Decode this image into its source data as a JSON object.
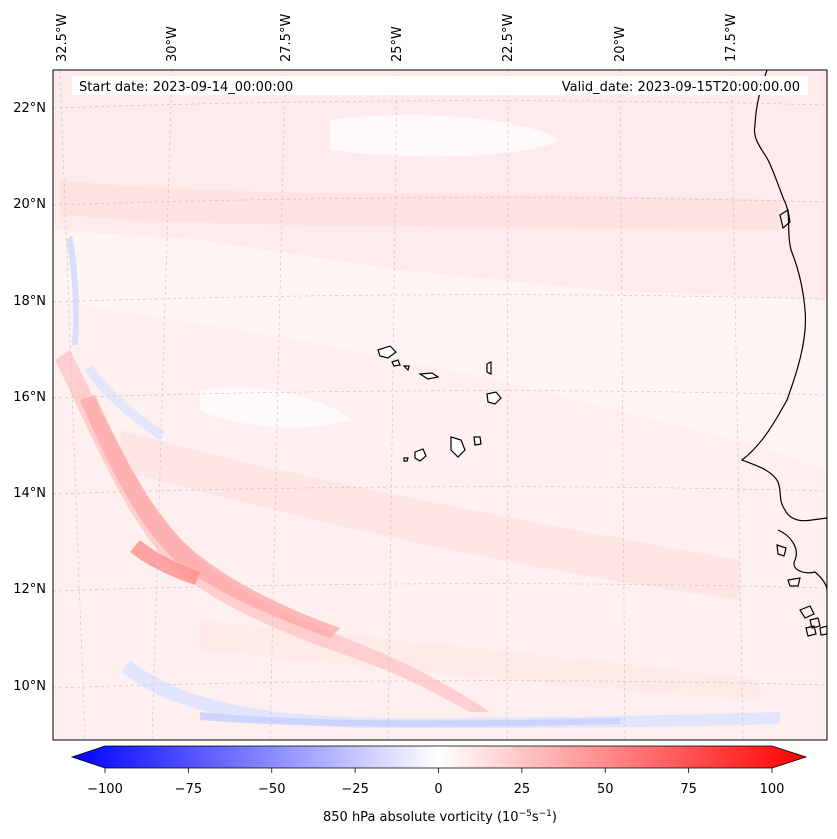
{
  "map": {
    "start_date": "Start date: 2023-09-14_00:00:00",
    "valid_date": "Valid_date: 2023-09-15T20:00:00.00",
    "lon_labels": [
      "32.5°W",
      "30°W",
      "27.5°W",
      "25°W",
      "22.5°W",
      "20°W",
      "17.5°W"
    ],
    "lat_labels": [
      "22°N",
      "20°N",
      "18°N",
      "16°N",
      "14°N",
      "12°N",
      "10°N"
    ],
    "field": "850 hPa absolute vorticity",
    "coastline_color": "#000000",
    "gridline_color": "#bbbbbb"
  },
  "colorbar": {
    "label_main": "850 hPa absolute vorticity (10",
    "label_exp1": "−5",
    "label_mid": "s",
    "label_exp2": "−1",
    "label_end": ")",
    "ticks": [
      "−100",
      "−75",
      "−50",
      "−25",
      "0",
      "25",
      "50",
      "75",
      "100"
    ],
    "min": -100,
    "max": 100,
    "colormap": "bwr",
    "low_color": "#0000ff",
    "mid_color": "#ffffff",
    "high_color": "#ff0000"
  }
}
